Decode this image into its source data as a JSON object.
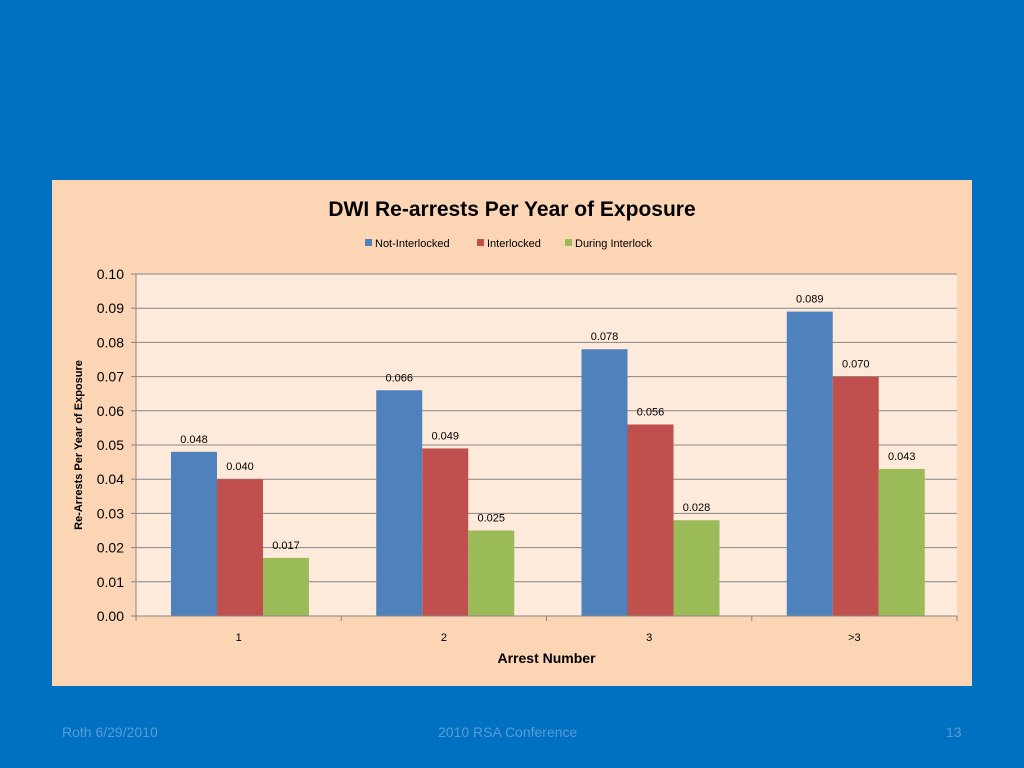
{
  "footer": {
    "left": "Roth 6/29/2010",
    "center": "2010 RSA Conference",
    "right": "13"
  },
  "chart_data": {
    "type": "bar",
    "title": "DWI Re-arrests Per Year of Exposure",
    "xlabel": "Arrest Number",
    "ylabel": "Re-Arrests Per Year of Exposure",
    "categories": [
      "1",
      "2",
      "3",
      ">3"
    ],
    "series": [
      {
        "name": "Not-Interlocked",
        "color": "#4F81BD",
        "values": [
          0.048,
          0.066,
          0.078,
          0.089
        ],
        "labels": [
          "0.048",
          "0.066",
          "0.078",
          "0.089"
        ]
      },
      {
        "name": "Interlocked",
        "color": "#C0504D",
        "values": [
          0.04,
          0.049,
          0.056,
          0.07
        ],
        "labels": [
          "0.040",
          "0.049",
          "0.056",
          "0.070"
        ]
      },
      {
        "name": "During Interlock",
        "color": "#9BBB59",
        "values": [
          0.017,
          0.025,
          0.028,
          0.043
        ],
        "labels": [
          "0.017",
          "0.025",
          "0.028",
          "0.043"
        ]
      }
    ],
    "ylim": [
      0,
      0.1
    ],
    "yticks": [
      "0.00",
      "0.01",
      "0.02",
      "0.03",
      "0.04",
      "0.05",
      "0.06",
      "0.07",
      "0.08",
      "0.09",
      "0.10"
    ],
    "grid": true,
    "legend": "top"
  }
}
